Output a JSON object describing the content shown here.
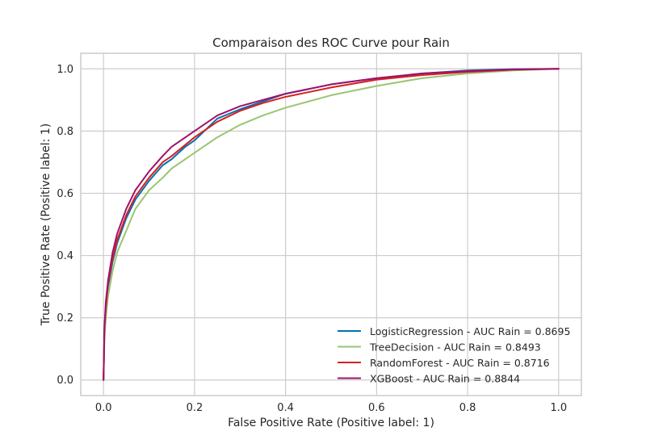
{
  "chart_data": {
    "type": "line",
    "title": "Comparaison des ROC Curve pour Rain",
    "xlabel": "False Positive Rate (Positive label: 1)",
    "ylabel": "True Positive Rate (Positive label: 1)",
    "xlim": [
      -0.05,
      1.05
    ],
    "ylim": [
      -0.05,
      1.05
    ],
    "xticks": [
      0.0,
      0.2,
      0.4,
      0.6,
      0.8,
      1.0
    ],
    "yticks": [
      0.0,
      0.2,
      0.4,
      0.6,
      0.8,
      1.0
    ],
    "xtick_labels": [
      "0.0",
      "0.2",
      "0.4",
      "0.6",
      "0.8",
      "1.0"
    ],
    "ytick_labels": [
      "0.0",
      "0.2",
      "0.4",
      "0.6",
      "0.8",
      "1.0"
    ],
    "grid": true,
    "legend_position": "bottom-right",
    "series": [
      {
        "name": "LogisticRegression - AUC Rain = 0.8695",
        "color": "#0072b2",
        "x": [
          0,
          0.002,
          0.005,
          0.01,
          0.02,
          0.03,
          0.05,
          0.07,
          0.1,
          0.13,
          0.15,
          0.18,
          0.2,
          0.25,
          0.3,
          0.4,
          0.5,
          0.6,
          0.7,
          0.8,
          0.9,
          1.0
        ],
        "y": [
          0,
          0.15,
          0.22,
          0.3,
          0.38,
          0.44,
          0.52,
          0.58,
          0.64,
          0.69,
          0.71,
          0.75,
          0.77,
          0.84,
          0.87,
          0.92,
          0.95,
          0.97,
          0.985,
          0.995,
          0.999,
          1.0
        ]
      },
      {
        "name": "TreeDecision - AUC Rain = 0.8493",
        "color": "#9ac573",
        "x": [
          0,
          0.002,
          0.005,
          0.01,
          0.02,
          0.03,
          0.05,
          0.07,
          0.1,
          0.13,
          0.15,
          0.2,
          0.25,
          0.3,
          0.35,
          0.4,
          0.45,
          0.5,
          0.6,
          0.7,
          0.8,
          0.9,
          1.0
        ],
        "y": [
          0,
          0.13,
          0.2,
          0.27,
          0.35,
          0.41,
          0.48,
          0.55,
          0.61,
          0.65,
          0.68,
          0.73,
          0.78,
          0.82,
          0.85,
          0.875,
          0.895,
          0.915,
          0.945,
          0.97,
          0.985,
          0.995,
          1.0
        ]
      },
      {
        "name": "RandomForest - AUC Rain = 0.8716",
        "color": "#d62020",
        "x": [
          0,
          0.002,
          0.005,
          0.01,
          0.02,
          0.03,
          0.05,
          0.07,
          0.1,
          0.13,
          0.15,
          0.2,
          0.25,
          0.3,
          0.35,
          0.4,
          0.45,
          0.5,
          0.6,
          0.7,
          0.8,
          0.9,
          1.0
        ],
        "y": [
          0,
          0.16,
          0.23,
          0.31,
          0.39,
          0.45,
          0.53,
          0.59,
          0.65,
          0.7,
          0.72,
          0.78,
          0.83,
          0.865,
          0.89,
          0.91,
          0.925,
          0.94,
          0.965,
          0.98,
          0.99,
          0.997,
          1.0
        ]
      },
      {
        "name": "XGBoost - AUC Rain = 0.8844",
        "color": "#a0126a",
        "x": [
          0,
          0.002,
          0.005,
          0.01,
          0.02,
          0.03,
          0.05,
          0.07,
          0.1,
          0.13,
          0.15,
          0.2,
          0.25,
          0.3,
          0.35,
          0.4,
          0.45,
          0.5,
          0.6,
          0.7,
          0.8,
          0.9,
          1.0
        ],
        "y": [
          0,
          0.17,
          0.25,
          0.32,
          0.41,
          0.47,
          0.55,
          0.61,
          0.67,
          0.72,
          0.75,
          0.8,
          0.85,
          0.88,
          0.9,
          0.92,
          0.935,
          0.95,
          0.97,
          0.985,
          0.993,
          0.998,
          1.0
        ]
      }
    ]
  }
}
